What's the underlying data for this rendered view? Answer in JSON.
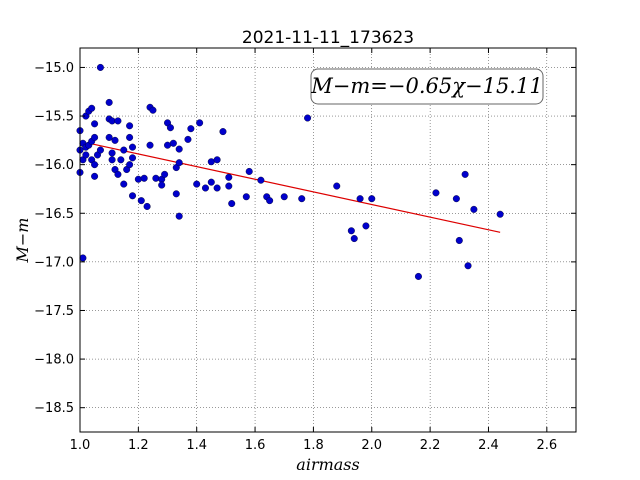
{
  "chart_data": {
    "type": "scatter",
    "title": "2021-11-11_173623",
    "xlabel": "airmass",
    "ylabel": "M−m",
    "xlim": [
      1.0,
      2.7
    ],
    "ylim": [
      -18.75,
      -14.8
    ],
    "xticks": [
      1.0,
      1.2,
      1.4,
      1.6,
      1.8,
      2.0,
      2.2,
      2.4,
      2.6
    ],
    "xtick_labels": [
      "1.0",
      "1.2",
      "1.4",
      "1.6",
      "1.8",
      "2.0",
      "2.2",
      "2.4",
      "2.6"
    ],
    "yticks": [
      -15.0,
      -15.5,
      -16.0,
      -16.5,
      -17.0,
      -17.5,
      -18.0,
      -18.5
    ],
    "ytick_labels": [
      "−15.0",
      "−15.5",
      "−16.0",
      "−16.5",
      "−17.0",
      "−17.5",
      "−18.0",
      "−18.5"
    ],
    "grid": true,
    "annotation": "M−m=−0.65χ−15.11",
    "fit": {
      "slope": -0.65,
      "intercept": -15.11,
      "x": [
        1.03,
        2.44
      ],
      "color": "#dd0000"
    },
    "point_color": "#0000cc",
    "points": [
      [
        1.0,
        -15.65
      ],
      [
        1.0,
        -15.85
      ],
      [
        1.0,
        -16.08
      ],
      [
        1.01,
        -15.78
      ],
      [
        1.01,
        -15.95
      ],
      [
        1.01,
        -16.96
      ],
      [
        1.02,
        -15.5
      ],
      [
        1.02,
        -15.82
      ],
      [
        1.02,
        -15.9
      ],
      [
        1.03,
        -15.45
      ],
      [
        1.03,
        -15.8
      ],
      [
        1.04,
        -15.42
      ],
      [
        1.04,
        -15.76
      ],
      [
        1.04,
        -15.95
      ],
      [
        1.05,
        -15.58
      ],
      [
        1.05,
        -15.72
      ],
      [
        1.05,
        -16.0
      ],
      [
        1.05,
        -16.12
      ],
      [
        1.06,
        -15.9
      ],
      [
        1.07,
        -15.85
      ],
      [
        1.07,
        -15.0
      ],
      [
        1.1,
        -15.36
      ],
      [
        1.1,
        -15.53
      ],
      [
        1.1,
        -15.72
      ],
      [
        1.11,
        -15.55
      ],
      [
        1.11,
        -15.88
      ],
      [
        1.11,
        -15.95
      ],
      [
        1.12,
        -15.75
      ],
      [
        1.12,
        -16.05
      ],
      [
        1.13,
        -15.55
      ],
      [
        1.13,
        -16.1
      ],
      [
        1.14,
        -15.95
      ],
      [
        1.15,
        -15.85
      ],
      [
        1.15,
        -16.2
      ],
      [
        1.16,
        -16.05
      ],
      [
        1.17,
        -15.6
      ],
      [
        1.17,
        -15.72
      ],
      [
        1.17,
        -16.0
      ],
      [
        1.18,
        -15.82
      ],
      [
        1.18,
        -15.93
      ],
      [
        1.18,
        -16.32
      ],
      [
        1.2,
        -16.15
      ],
      [
        1.21,
        -16.37
      ],
      [
        1.22,
        -16.14
      ],
      [
        1.23,
        -16.43
      ],
      [
        1.24,
        -15.41
      ],
      [
        1.24,
        -15.8
      ],
      [
        1.25,
        -15.44
      ],
      [
        1.26,
        -16.14
      ],
      [
        1.28,
        -16.15
      ],
      [
        1.28,
        -16.21
      ],
      [
        1.29,
        -16.1
      ],
      [
        1.3,
        -15.57
      ],
      [
        1.3,
        -15.8
      ],
      [
        1.31,
        -15.62
      ],
      [
        1.32,
        -15.78
      ],
      [
        1.33,
        -16.03
      ],
      [
        1.33,
        -16.3
      ],
      [
        1.34,
        -15.84
      ],
      [
        1.34,
        -15.98
      ],
      [
        1.34,
        -16.53
      ],
      [
        1.37,
        -15.74
      ],
      [
        1.38,
        -15.63
      ],
      [
        1.4,
        -16.2
      ],
      [
        1.41,
        -15.57
      ],
      [
        1.43,
        -16.24
      ],
      [
        1.45,
        -16.18
      ],
      [
        1.45,
        -15.97
      ],
      [
        1.47,
        -15.95
      ],
      [
        1.47,
        -16.24
      ],
      [
        1.49,
        -15.66
      ],
      [
        1.51,
        -16.13
      ],
      [
        1.51,
        -16.22
      ],
      [
        1.52,
        -16.4
      ],
      [
        1.57,
        -16.33
      ],
      [
        1.58,
        -16.07
      ],
      [
        1.62,
        -16.16
      ],
      [
        1.64,
        -16.33
      ],
      [
        1.65,
        -16.37
      ],
      [
        1.7,
        -16.33
      ],
      [
        1.76,
        -16.35
      ],
      [
        1.78,
        -15.52
      ],
      [
        1.88,
        -16.22
      ],
      [
        1.93,
        -16.68
      ],
      [
        1.94,
        -16.76
      ],
      [
        1.96,
        -16.35
      ],
      [
        1.98,
        -16.63
      ],
      [
        2.0,
        -16.35
      ],
      [
        2.16,
        -17.15
      ],
      [
        2.22,
        -16.29
      ],
      [
        2.29,
        -16.35
      ],
      [
        2.3,
        -16.78
      ],
      [
        2.32,
        -16.1
      ],
      [
        2.33,
        -17.04
      ],
      [
        2.35,
        -16.46
      ],
      [
        2.44,
        -16.51
      ]
    ]
  }
}
